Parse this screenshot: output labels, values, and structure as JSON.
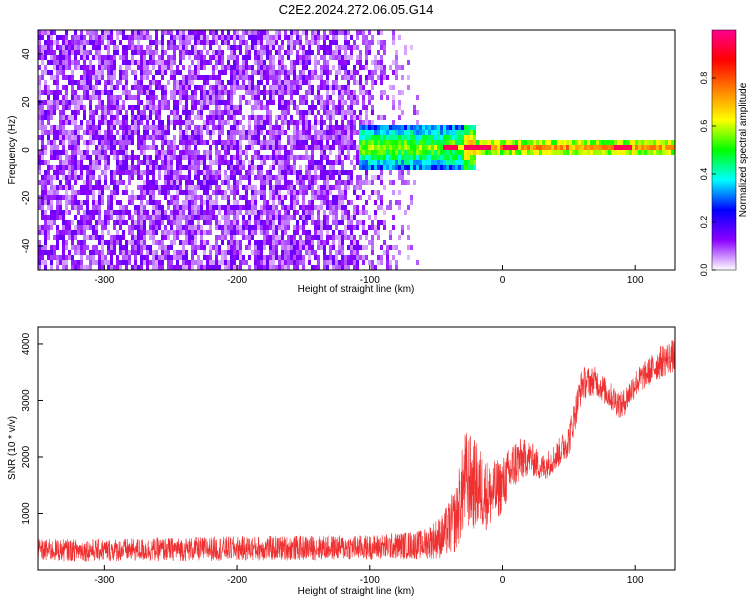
{
  "title": "C2E2.2024.272.06.05.G14",
  "chart_data": [
    {
      "type": "heatmap",
      "xlabel": "Height of straight line (km)",
      "ylabel": "Frequency (Hz)",
      "xlim": [
        -350,
        130
      ],
      "ylim": [
        -50,
        50
      ],
      "xticks": [
        -300,
        -200,
        -100,
        0,
        100
      ],
      "yticks": [
        -40,
        -20,
        0,
        20,
        40
      ],
      "colorbar": {
        "label": "Normalized spectral amplitude",
        "range": [
          0,
          1
        ],
        "ticks": [
          "0.0",
          "0.2",
          "0.4",
          "0.6",
          "0.8"
        ],
        "stops": [
          "#ffffff",
          "#8b00ff",
          "#0000ff",
          "#00ffff",
          "#00ff00",
          "#ffff00",
          "#ff8000",
          "#ff0000",
          "#ff0090"
        ]
      },
      "features": {
        "noise_region_x": [
          -350,
          -60
        ],
        "noise_amplitude": 0.1,
        "signal_line_x": [
          -110,
          130
        ],
        "signal_line_freq_hz": 0,
        "signal_amplitude_range": [
          0.2,
          1.0
        ],
        "peak_x": [
          -40,
          -25,
          -15,
          5,
          90
        ]
      }
    },
    {
      "type": "line",
      "xlabel": "Height of straight line (km)",
      "ylabel": "SNR (10 * v/v)",
      "xlim": [
        -350,
        130
      ],
      "ylim": [
        0,
        4300
      ],
      "xticks": [
        -300,
        -200,
        -100,
        0,
        100
      ],
      "yticks": [
        1000,
        2000,
        3000,
        4000
      ],
      "color": "#f03030",
      "profile": {
        "x": [
          -350,
          -300,
          -200,
          -100,
          -60,
          -45,
          -35,
          -28,
          -20,
          -10,
          0,
          10,
          20,
          30,
          40,
          50,
          60,
          70,
          80,
          90,
          100,
          110,
          120,
          130
        ],
        "center": [
          350,
          350,
          380,
          400,
          450,
          600,
          900,
          1600,
          1500,
          1300,
          1500,
          1900,
          2000,
          1800,
          2000,
          2300,
          3300,
          3350,
          3100,
          2900,
          3300,
          3500,
          3700,
          3800
        ],
        "spread": [
          200,
          200,
          220,
          220,
          260,
          400,
          600,
          900,
          800,
          600,
          500,
          450,
          300,
          250,
          250,
          300,
          300,
          250,
          250,
          250,
          250,
          250,
          300,
          300
        ]
      }
    }
  ]
}
